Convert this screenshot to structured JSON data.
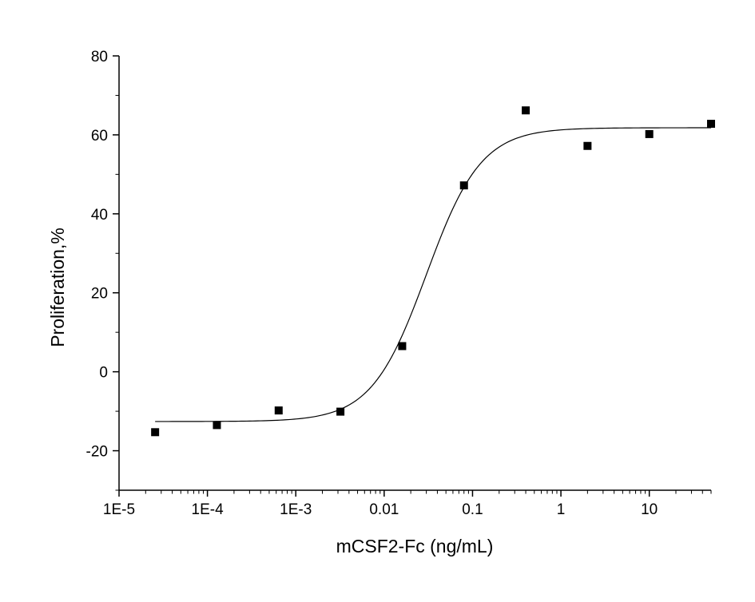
{
  "chart_data": {
    "type": "scatter",
    "title": "",
    "xlabel": "mCSF2-Fc (ng/mL)",
    "ylabel": "Proliferation,%",
    "x_scale": "log",
    "xlim": [
      1e-05,
      50
    ],
    "ylim": [
      -30,
      80
    ],
    "x_ticks": [
      {
        "value": 1e-05,
        "label": "1E-5"
      },
      {
        "value": 0.0001,
        "label": "1E-4"
      },
      {
        "value": 0.001,
        "label": "1E-3"
      },
      {
        "value": 0.01,
        "label": "0.01"
      },
      {
        "value": 0.1,
        "label": "0.1"
      },
      {
        "value": 1,
        "label": "1"
      },
      {
        "value": 10,
        "label": "10"
      }
    ],
    "y_ticks": [
      {
        "value": -20,
        "label": "-20"
      },
      {
        "value": 0,
        "label": "0"
      },
      {
        "value": 20,
        "label": "20"
      },
      {
        "value": 40,
        "label": "40"
      },
      {
        "value": 60,
        "label": "60"
      },
      {
        "value": 80,
        "label": "80"
      }
    ],
    "grid": false,
    "series": [
      {
        "kind": "points",
        "marker": "square",
        "color": "#000000",
        "x": [
          2.56e-05,
          0.000128,
          0.00064,
          0.0032,
          0.016,
          0.08,
          0.4,
          2,
          10,
          50
        ],
        "y": [
          -15.3,
          -13.5,
          -9.8,
          -10.1,
          6.5,
          47.2,
          66.2,
          57.2,
          60.2,
          62.8
        ]
      },
      {
        "kind": "fit",
        "model": "logistic",
        "color": "#000000",
        "bottom": -12.6,
        "top": 61.8,
        "ec50": 0.03,
        "hill": 1.4
      }
    ]
  }
}
